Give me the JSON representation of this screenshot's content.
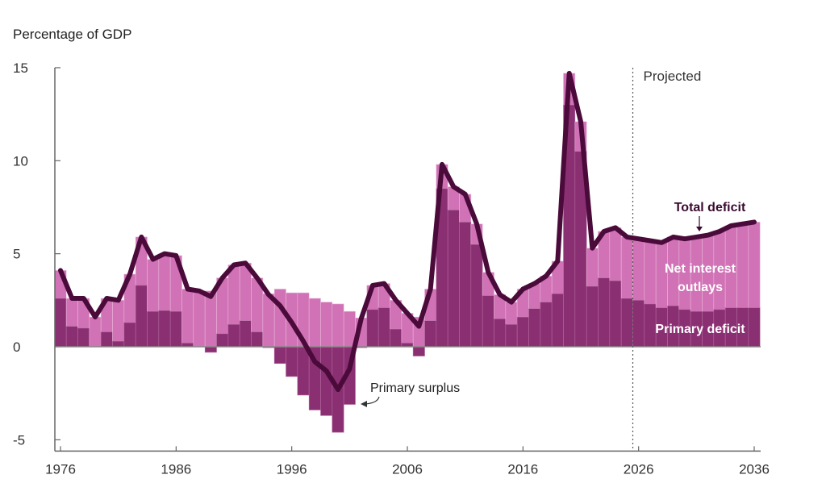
{
  "chart_data": {
    "type": "bar",
    "ylabel": "Percentage of GDP",
    "ylim": [
      -5,
      15
    ],
    "xlim": [
      1976,
      2036
    ],
    "y_ticks": [
      "15",
      "10",
      "5",
      "0",
      "-5"
    ],
    "x_ticks": [
      "1976",
      "1986",
      "1996",
      "2006",
      "2016",
      "2026",
      "2036"
    ],
    "projection_start_label": "Projected",
    "annotations": {
      "total_deficit": "Total deficit",
      "net_interest": [
        "Net interest",
        "outlays"
      ],
      "primary_deficit": "Primary deficit",
      "primary_surplus": "Primary surplus"
    },
    "years": [
      1976,
      1977,
      1978,
      1979,
      1980,
      1981,
      1982,
      1983,
      1984,
      1985,
      1986,
      1987,
      1988,
      1989,
      1990,
      1991,
      1992,
      1993,
      1994,
      1995,
      1996,
      1997,
      1998,
      1999,
      2000,
      2001,
      2002,
      2003,
      2004,
      2005,
      2006,
      2007,
      2008,
      2009,
      2010,
      2011,
      2012,
      2013,
      2014,
      2015,
      2016,
      2017,
      2018,
      2019,
      2020,
      2021,
      2022,
      2023,
      2024,
      2025,
      2026,
      2027,
      2028,
      2029,
      2030,
      2031,
      2032,
      2033,
      2034,
      2035,
      2036
    ],
    "series": [
      {
        "name": "Primary deficit",
        "stack": "bar",
        "color": "#8a2f72",
        "values": [
          2.6,
          1.1,
          1.0,
          0.0,
          0.8,
          0.3,
          1.3,
          3.3,
          1.9,
          1.95,
          1.9,
          0.2,
          0.0,
          -0.3,
          0.7,
          1.2,
          1.4,
          0.8,
          -0.05,
          -0.9,
          -1.6,
          -2.6,
          -3.4,
          -3.7,
          -4.6,
          -3.1,
          -0.05,
          2.0,
          2.1,
          0.95,
          0.2,
          -0.5,
          1.4,
          8.5,
          7.35,
          6.7,
          5.5,
          2.75,
          1.5,
          1.2,
          1.6,
          2.05,
          2.4,
          2.85,
          13.0,
          10.5,
          3.25,
          3.7,
          3.55,
          2.6,
          2.5,
          2.3,
          2.1,
          2.2,
          2.0,
          1.9,
          1.9,
          2.0,
          2.1,
          2.1,
          2.1
        ]
      },
      {
        "name": "Net interest outlays",
        "stack": "bar",
        "color": "#d072b5",
        "values": [
          1.5,
          1.5,
          1.6,
          1.6,
          1.8,
          2.2,
          2.6,
          2.6,
          2.8,
          3.05,
          3.0,
          2.9,
          3.0,
          3.0,
          3.0,
          3.2,
          3.1,
          2.9,
          2.85,
          3.1,
          2.9,
          2.9,
          2.6,
          2.4,
          2.3,
          1.9,
          1.55,
          1.3,
          1.3,
          1.55,
          1.6,
          1.6,
          1.7,
          1.3,
          1.25,
          1.5,
          1.1,
          1.25,
          1.3,
          1.2,
          1.5,
          1.35,
          1.4,
          1.75,
          1.7,
          1.6,
          2.05,
          2.5,
          2.85,
          3.3,
          3.3,
          3.4,
          3.5,
          3.7,
          3.8,
          4.0,
          4.1,
          4.2,
          4.4,
          4.5,
          4.6
        ]
      },
      {
        "name": "Total deficit",
        "type": "line",
        "color": "#4a0a3a",
        "values": [
          4.1,
          2.6,
          2.6,
          1.6,
          2.6,
          2.5,
          3.9,
          5.9,
          4.7,
          5.0,
          4.9,
          3.1,
          3.0,
          2.7,
          3.7,
          4.4,
          4.5,
          3.7,
          2.8,
          2.2,
          1.3,
          0.3,
          -0.8,
          -1.3,
          -2.3,
          -1.2,
          1.5,
          3.3,
          3.4,
          2.5,
          1.8,
          1.1,
          3.1,
          9.8,
          8.6,
          8.2,
          6.6,
          4.0,
          2.8,
          2.4,
          3.1,
          3.4,
          3.8,
          4.6,
          14.7,
          12.1,
          5.3,
          6.2,
          6.4,
          5.9,
          5.8,
          5.7,
          5.6,
          5.9,
          5.8,
          5.9,
          6.0,
          6.2,
          6.5,
          6.6,
          6.7
        ]
      }
    ],
    "projection_start_year": 2025.5,
    "grid": false
  }
}
